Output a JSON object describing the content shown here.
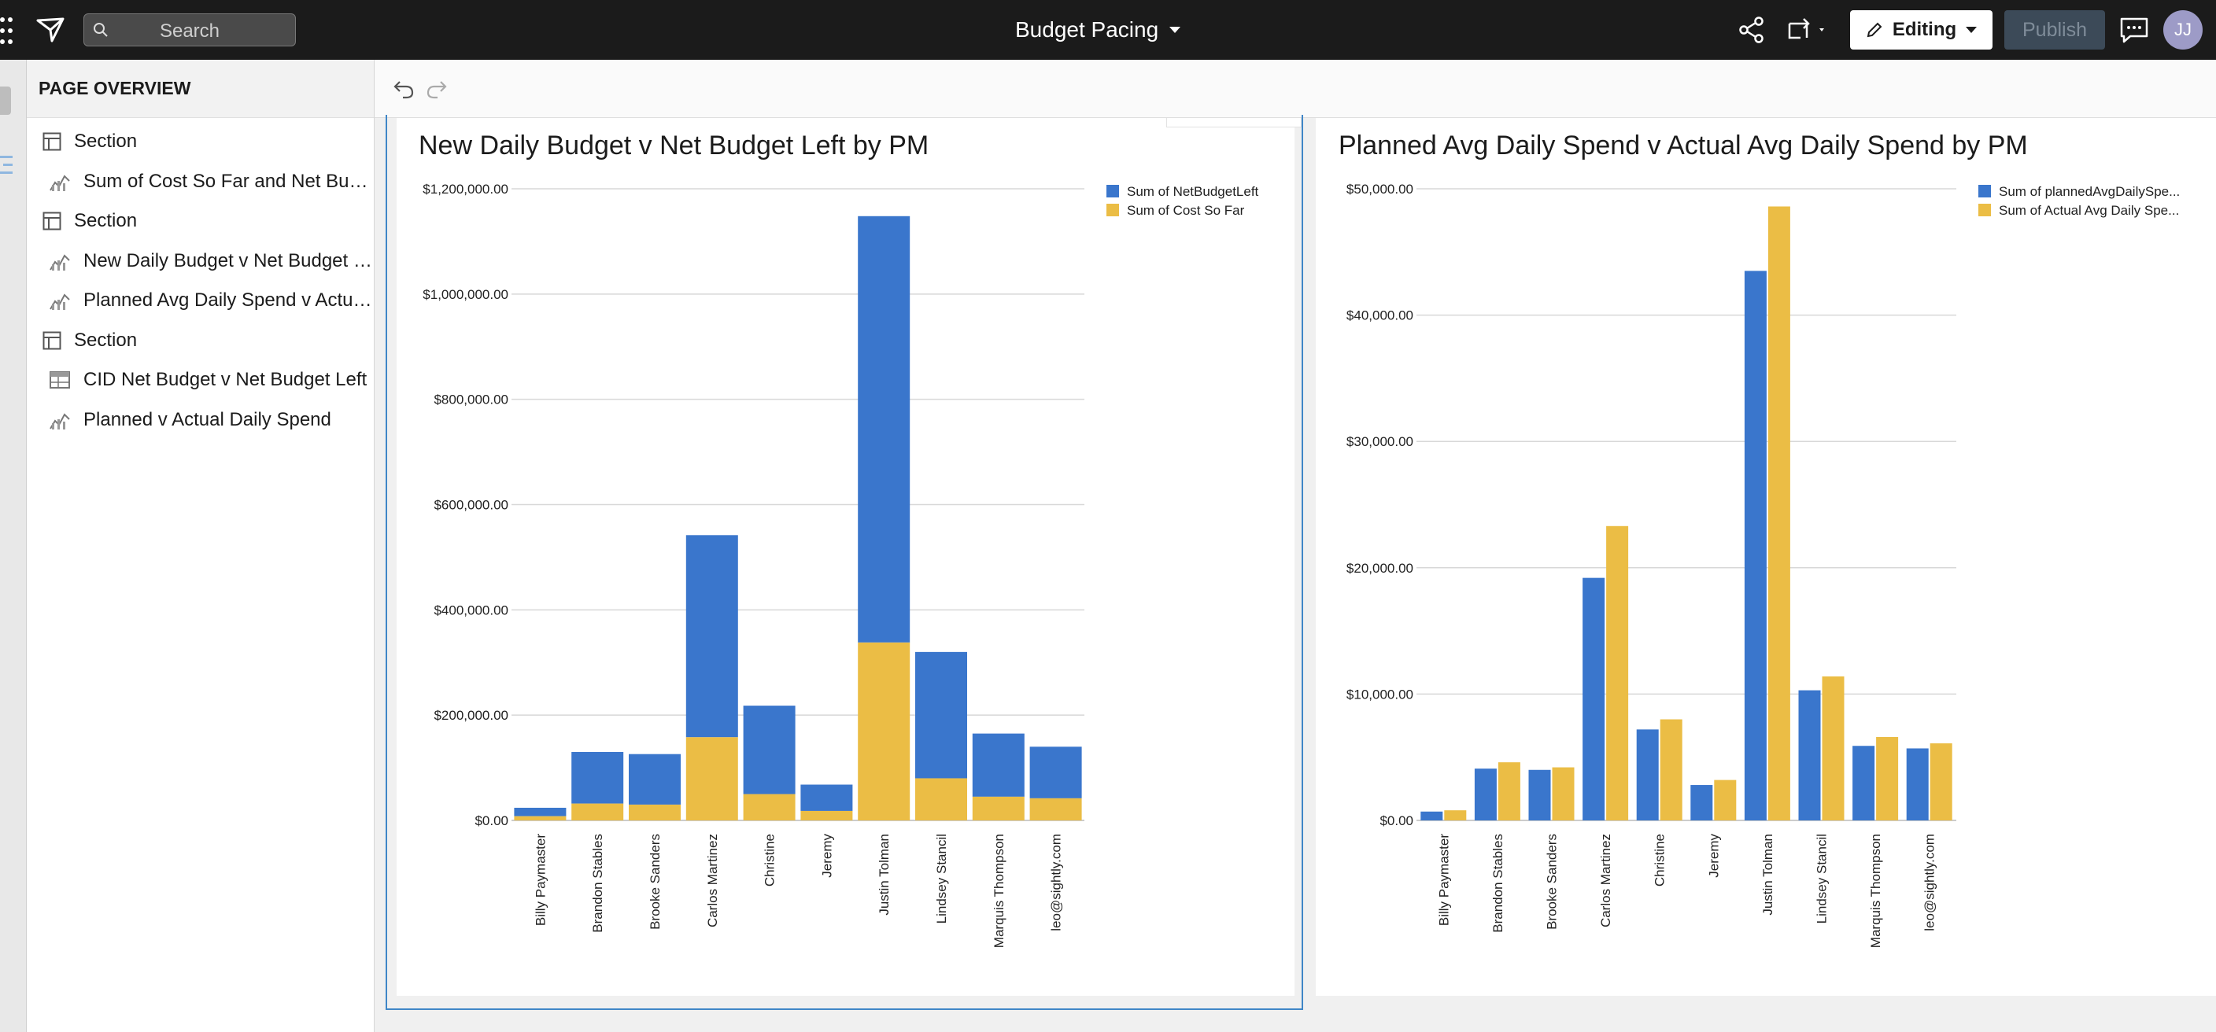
{
  "header": {
    "search_placeholder": "Search",
    "workbook_title": "Budget Pacing",
    "editing_label": "Editing",
    "publish_label": "Publish",
    "avatar_initials": "JJ",
    "icons": [
      "apps-grid-icon",
      "logo-icon",
      "search-icon",
      "title-caret-icon",
      "share-icon",
      "swap-icon",
      "pencil-icon",
      "comment-icon"
    ]
  },
  "sidebar": {
    "heading": "PAGE OVERVIEW",
    "items": [
      {
        "label": "Section",
        "kind": "section",
        "icon": "section-layout-icon"
      },
      {
        "label": "Sum of Cost So Far and Net Budget Left",
        "kind": "chart",
        "icon": "chart-icon"
      },
      {
        "label": "Section",
        "kind": "section",
        "icon": "section-layout-icon"
      },
      {
        "label": "New Daily Budget v Net Budget Left by PM",
        "kind": "chart",
        "icon": "chart-icon"
      },
      {
        "label": "Planned Avg Daily Spend v Actual Avg Daily Spend by PM",
        "kind": "chart",
        "icon": "chart-icon"
      },
      {
        "label": "Section",
        "kind": "section",
        "icon": "section-layout-icon"
      },
      {
        "label": "CID Net Budget v Net Budget Left",
        "kind": "table",
        "icon": "table-icon"
      },
      {
        "label": "Planned v Actual Daily Spend",
        "kind": "chart",
        "icon": "chart-icon"
      }
    ]
  },
  "colors": {
    "blue": "#3a76cc",
    "yellow": "#ebbd45",
    "topbar": "#1b1b1b",
    "selection": "#3f86c7"
  },
  "chart_data": [
    {
      "type": "bar",
      "stacked": true,
      "title": "New Daily Budget v Net Budget Left by PM",
      "categories": [
        "Billy Paymaster",
        "Brandon Stables",
        "Brooke Sanders",
        "Carlos Martinez",
        "Christine",
        "Jeremy",
        "Justin Tolman",
        "Lindsey Stancil",
        "Marquis Thompson",
        "leo@sightly.com"
      ],
      "series": [
        {
          "name": "Sum of Cost So Far",
          "values": [
            8000,
            32000,
            30000,
            158000,
            50000,
            18000,
            338000,
            80000,
            45000,
            42000
          ]
        },
        {
          "name": "Sum of NetBudgetLeft",
          "values": [
            16000,
            98000,
            96000,
            384000,
            168000,
            50000,
            810000,
            240000,
            120000,
            98000
          ]
        }
      ],
      "yticks": [
        "$0.00",
        "$200,000.00",
        "$400,000.00",
        "$600,000.00",
        "$800,000.00",
        "$1,000,000.00",
        "$1,200,000.00"
      ],
      "ylim": [
        0,
        1200000
      ],
      "legend": [
        "Sum of NetBudgetLeft",
        "Sum of Cost So Far"
      ],
      "grid": true,
      "legend_position": "top-right"
    },
    {
      "type": "bar",
      "stacked": false,
      "title": "Planned Avg Daily Spend v Actual Avg Daily Spend by PM",
      "categories": [
        "Billy Paymaster",
        "Brandon Stables",
        "Brooke Sanders",
        "Carlos Martinez",
        "Christine",
        "Jeremy",
        "Justin Tolman",
        "Lindsey Stancil",
        "Marquis Thompson",
        "leo@sightly.com"
      ],
      "series": [
        {
          "name": "Sum of plannedAvgDailySpe...",
          "values": [
            700,
            4100,
            4000,
            19200,
            7200,
            2800,
            43500,
            10300,
            5900,
            5700
          ]
        },
        {
          "name": "Sum of Actual Avg Daily Spe...",
          "values": [
            800,
            4600,
            4200,
            23300,
            8000,
            3200,
            48600,
            11400,
            6600,
            6100
          ]
        }
      ],
      "yticks": [
        "$0.00",
        "$10,000.00",
        "$20,000.00",
        "$30,000.00",
        "$40,000.00",
        "$50,000.00"
      ],
      "ylim": [
        0,
        50000
      ],
      "legend": [
        "Sum of plannedAvgDailySpe...",
        "Sum of Actual Avg Daily Spe..."
      ],
      "grid": true,
      "legend_position": "top-right"
    }
  ]
}
